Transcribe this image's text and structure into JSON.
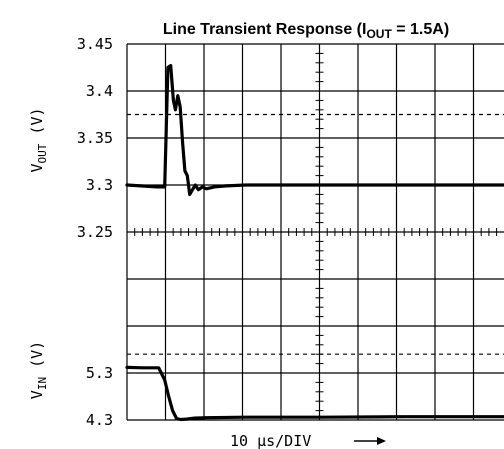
{
  "chart_data": {
    "type": "line",
    "title_main": "Line Transient Response (I",
    "title_sub": "OUT",
    "title_tail": " = 1.5A)",
    "top_panel": {
      "ylabel_main": "V",
      "ylabel_sub": "OUT",
      "ylabel_unit": " (V)",
      "ylim": [
        3.25,
        3.45
      ],
      "yticks": [
        "3.45",
        "3.4",
        "3.35",
        "3.3",
        "3.25"
      ],
      "dashed_level": 3.375,
      "series": [
        {
          "x": [
            0,
            7.5,
            9.5,
            10.3,
            11,
            11.7,
            12.2,
            12.8,
            13.4,
            14.0,
            14.6,
            15.2,
            15.8,
            16.5,
            17.2,
            18.0,
            19.0,
            20.0,
            22,
            25,
            30,
            40,
            60,
            80,
            95
          ],
          "y": [
            3.3,
            3.298,
            3.298,
            3.425,
            3.427,
            3.39,
            3.38,
            3.395,
            3.383,
            3.345,
            3.315,
            3.31,
            3.29,
            3.295,
            3.3,
            3.295,
            3.298,
            3.296,
            3.298,
            3.299,
            3.3,
            3.3,
            3.3,
            3.3,
            3.3
          ]
        }
      ]
    },
    "bottom_panel": {
      "ylabel_main": "V",
      "ylabel_sub": "IN",
      "ylabel_unit": " (V)",
      "yticks": [
        "5.3",
        "4.3"
      ],
      "ytick_values": [
        5.3,
        4.3
      ],
      "dashed_level": 5.7,
      "series": [
        {
          "x": [
            0,
            4,
            8,
            9.5,
            10.5,
            11.5,
            12.5,
            13.5,
            15,
            17,
            20,
            30,
            50,
            70,
            95
          ],
          "y": [
            5.42,
            5.41,
            5.41,
            5.15,
            4.8,
            4.5,
            4.33,
            4.31,
            4.32,
            4.34,
            4.35,
            4.36,
            4.36,
            4.37,
            4.37
          ]
        }
      ]
    },
    "x_label": "10 μs/DIV",
    "xlim": [
      0,
      95
    ],
    "grid": true
  }
}
